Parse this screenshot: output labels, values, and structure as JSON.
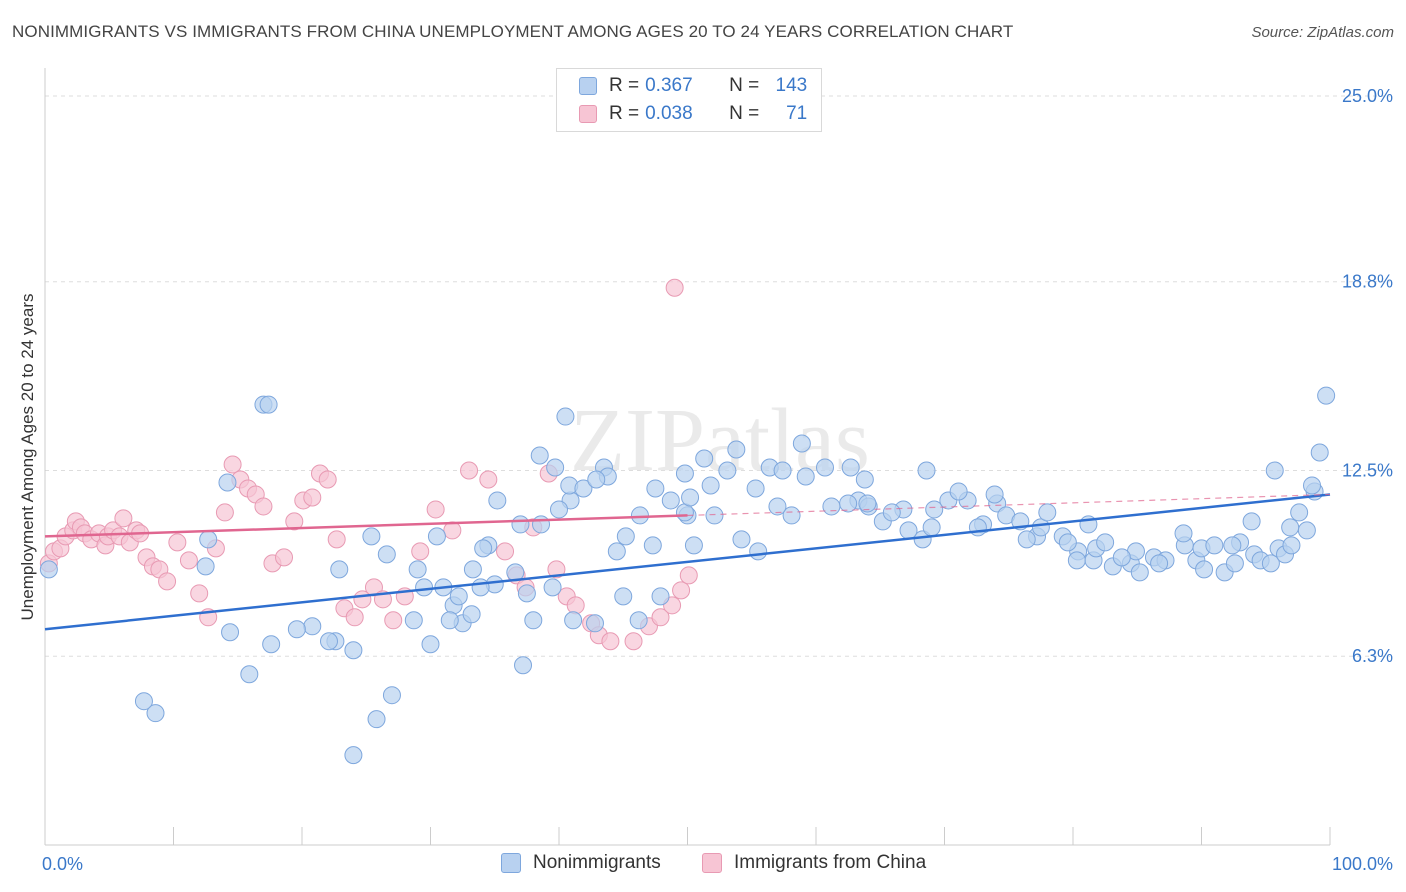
{
  "title": "NONIMMIGRANTS VS IMMIGRANTS FROM CHINA UNEMPLOYMENT AMONG AGES 20 TO 24 YEARS CORRELATION CHART",
  "source": "Source: ZipAtlas.com",
  "watermark": "ZIPatlas",
  "legend": {
    "nonimmigrants": {
      "r_label": "R =",
      "r_value": "0.367",
      "n_label": "N =",
      "n_value": "143"
    },
    "china": {
      "r_label": "R =",
      "r_value": "0.038",
      "n_label": "N =",
      "n_value": "71"
    }
  },
  "bottom_legend": {
    "nonimmigrants": "Nonimmigrants",
    "china": "Immigrants from China"
  },
  "colors": {
    "blue_fill": "#b8d1f0",
    "blue_stroke": "#7ea7dd",
    "blue_line": "#2f6fcf",
    "pink_fill": "#f7c5d4",
    "pink_stroke": "#e89ab3",
    "pink_line": "#e06690",
    "axis_label": "#3a78c9",
    "grid": "#dddddd"
  },
  "chart_data": {
    "type": "scatter",
    "title": "NONIMMIGRANTS VS IMMIGRANTS FROM CHINA UNEMPLOYMENT AMONG AGES 20 TO 24 YEARS CORRELATION CHART",
    "xlabel": "",
    "ylabel": "Unemployment Among Ages 20 to 24 years",
    "xlim": [
      0,
      100
    ],
    "ylim": [
      0,
      25.6
    ],
    "x_tick_labels": [
      "0.0%",
      "100.0%"
    ],
    "y_ticks": [
      6.3,
      12.5,
      18.8,
      25.0
    ],
    "y_tick_labels": [
      "6.3%",
      "12.5%",
      "18.8%",
      "25.0%"
    ],
    "grid": true,
    "legend_position": "top-center",
    "series": [
      {
        "name": "Nonimmigrants",
        "color": "#b8d1f0",
        "trend": {
          "x": [
            0,
            100
          ],
          "y": [
            7.2,
            11.7
          ],
          "style": "solid"
        },
        "points": [
          [
            0.3,
            9.2
          ],
          [
            17.0,
            14.7
          ],
          [
            17.4,
            14.7
          ],
          [
            14.2,
            12.1
          ],
          [
            22.6,
            6.8
          ],
          [
            24.0,
            6.5
          ],
          [
            25.4,
            10.3
          ],
          [
            26.6,
            9.7
          ],
          [
            29.5,
            8.6
          ],
          [
            31.0,
            8.6
          ],
          [
            37.2,
            6.0
          ],
          [
            37.5,
            8.4
          ],
          [
            38.0,
            7.5
          ],
          [
            43.5,
            12.6
          ],
          [
            40.9,
            11.5
          ],
          [
            40.5,
            14.3
          ],
          [
            43.8,
            12.3
          ],
          [
            30.5,
            10.3
          ],
          [
            31.8,
            8.0
          ],
          [
            29.0,
            9.2
          ],
          [
            32.5,
            7.4
          ],
          [
            33.2,
            7.7
          ],
          [
            34.5,
            10.0
          ],
          [
            35.0,
            8.7
          ],
          [
            37.0,
            10.7
          ],
          [
            38.5,
            13.0
          ],
          [
            40.8,
            12.0
          ],
          [
            41.9,
            11.9
          ],
          [
            42.9,
            12.2
          ],
          [
            36.6,
            9.1
          ],
          [
            38.6,
            10.7
          ],
          [
            39.5,
            8.6
          ],
          [
            44.5,
            9.8
          ],
          [
            45.2,
            10.3
          ],
          [
            46.3,
            11.0
          ],
          [
            47.5,
            11.9
          ],
          [
            47.3,
            10.0
          ],
          [
            48.7,
            11.5
          ],
          [
            49.8,
            12.4
          ],
          [
            50.0,
            11.0
          ],
          [
            49.8,
            11.1
          ],
          [
            50.2,
            11.6
          ],
          [
            51.3,
            12.9
          ],
          [
            51.8,
            12.0
          ],
          [
            53.1,
            12.5
          ],
          [
            53.8,
            13.2
          ],
          [
            55.3,
            11.9
          ],
          [
            56.4,
            12.6
          ],
          [
            58.1,
            11.0
          ],
          [
            57.4,
            12.5
          ],
          [
            59.2,
            12.3
          ],
          [
            60.7,
            12.6
          ],
          [
            62.7,
            12.6
          ],
          [
            63.3,
            11.5
          ],
          [
            62.5,
            11.4
          ],
          [
            64.1,
            11.3
          ],
          [
            64.0,
            11.4
          ],
          [
            65.2,
            10.8
          ],
          [
            66.8,
            11.2
          ],
          [
            68.3,
            10.2
          ],
          [
            69.2,
            11.2
          ],
          [
            69.0,
            10.6
          ],
          [
            70.3,
            11.5
          ],
          [
            71.8,
            11.5
          ],
          [
            73.0,
            10.7
          ],
          [
            72.6,
            10.6
          ],
          [
            74.1,
            11.4
          ],
          [
            74.8,
            11.0
          ],
          [
            75.9,
            10.8
          ],
          [
            77.2,
            10.3
          ],
          [
            77.5,
            10.6
          ],
          [
            78.0,
            11.1
          ],
          [
            79.2,
            10.3
          ],
          [
            80.4,
            9.8
          ],
          [
            80.3,
            9.5
          ],
          [
            81.6,
            9.5
          ],
          [
            81.8,
            9.9
          ],
          [
            82.5,
            10.1
          ],
          [
            83.1,
            9.3
          ],
          [
            84.5,
            9.4
          ],
          [
            84.9,
            9.8
          ],
          [
            85.2,
            9.1
          ],
          [
            86.3,
            9.6
          ],
          [
            87.2,
            9.5
          ],
          [
            88.7,
            10.0
          ],
          [
            89.6,
            9.5
          ],
          [
            90.2,
            9.2
          ],
          [
            90.0,
            9.9
          ],
          [
            91.0,
            10.0
          ],
          [
            91.8,
            9.1
          ],
          [
            92.6,
            9.4
          ],
          [
            93.0,
            10.1
          ],
          [
            94.1,
            9.7
          ],
          [
            94.6,
            9.5
          ],
          [
            95.4,
            9.4
          ],
          [
            96.0,
            9.9
          ],
          [
            96.5,
            9.7
          ],
          [
            97.0,
            10.0
          ],
          [
            97.6,
            11.1
          ],
          [
            98.2,
            10.5
          ],
          [
            98.8,
            11.8
          ],
          [
            99.2,
            13.1
          ],
          [
            99.7,
            15.0
          ],
          [
            98.6,
            12.0
          ],
          [
            96.9,
            10.6
          ],
          [
            95.7,
            12.5
          ],
          [
            93.9,
            10.8
          ],
          [
            92.4,
            10.0
          ],
          [
            88.6,
            10.4
          ],
          [
            86.7,
            9.4
          ],
          [
            83.8,
            9.6
          ],
          [
            81.2,
            10.7
          ],
          [
            79.6,
            10.1
          ],
          [
            76.4,
            10.2
          ],
          [
            73.9,
            11.7
          ],
          [
            71.1,
            11.8
          ],
          [
            68.6,
            12.5
          ],
          [
            67.2,
            10.5
          ],
          [
            65.9,
            11.1
          ],
          [
            63.8,
            12.2
          ],
          [
            61.2,
            11.3
          ],
          [
            58.9,
            13.4
          ],
          [
            57.0,
            11.3
          ],
          [
            55.5,
            9.8
          ],
          [
            54.2,
            10.2
          ],
          [
            52.1,
            11.0
          ],
          [
            50.5,
            10.0
          ],
          [
            47.9,
            8.3
          ],
          [
            46.2,
            7.5
          ],
          [
            45.0,
            8.3
          ],
          [
            42.8,
            7.4
          ],
          [
            41.1,
            7.5
          ],
          [
            40.0,
            11.2
          ],
          [
            39.7,
            12.6
          ],
          [
            35.2,
            11.5
          ],
          [
            34.1,
            9.9
          ],
          [
            33.9,
            8.6
          ],
          [
            33.3,
            9.2
          ],
          [
            32.2,
            8.3
          ],
          [
            31.5,
            7.5
          ],
          [
            30.0,
            6.7
          ],
          [
            28.7,
            7.5
          ],
          [
            27.0,
            5.0
          ],
          [
            25.8,
            4.2
          ],
          [
            24.0,
            3.0
          ],
          [
            22.9,
            9.2
          ],
          [
            22.1,
            6.8
          ],
          [
            20.8,
            7.3
          ],
          [
            19.6,
            7.2
          ],
          [
            17.6,
            6.7
          ],
          [
            15.9,
            5.7
          ],
          [
            14.4,
            7.1
          ],
          [
            12.7,
            10.2
          ],
          [
            12.5,
            9.3
          ],
          [
            8.6,
            4.4
          ],
          [
            7.7,
            4.8
          ]
        ]
      },
      {
        "name": "Immigrants from China",
        "color": "#f7c5d4",
        "trend": {
          "x": [
            0,
            100
          ],
          "y": [
            10.3,
            11.7
          ],
          "style": "solid-then-dashed",
          "solid_until": 50
        },
        "points": [
          [
            0.3,
            9.4
          ],
          [
            0.7,
            9.8
          ],
          [
            1.2,
            9.9
          ],
          [
            1.6,
            10.3
          ],
          [
            2.2,
            10.5
          ],
          [
            2.4,
            10.8
          ],
          [
            2.8,
            10.6
          ],
          [
            3.1,
            10.4
          ],
          [
            3.6,
            10.2
          ],
          [
            4.2,
            10.4
          ],
          [
            4.7,
            10.0
          ],
          [
            4.9,
            10.3
          ],
          [
            5.3,
            10.5
          ],
          [
            5.8,
            10.3
          ],
          [
            6.1,
            10.9
          ],
          [
            6.6,
            10.1
          ],
          [
            7.1,
            10.5
          ],
          [
            7.4,
            10.4
          ],
          [
            7.9,
            9.6
          ],
          [
            8.4,
            9.3
          ],
          [
            8.9,
            9.2
          ],
          [
            9.5,
            8.8
          ],
          [
            10.3,
            10.1
          ],
          [
            11.2,
            9.5
          ],
          [
            12.0,
            8.4
          ],
          [
            12.7,
            7.6
          ],
          [
            13.3,
            9.9
          ],
          [
            14.0,
            11.1
          ],
          [
            14.6,
            12.7
          ],
          [
            15.2,
            12.2
          ],
          [
            15.8,
            11.9
          ],
          [
            16.4,
            11.7
          ],
          [
            17.0,
            11.3
          ],
          [
            17.7,
            9.4
          ],
          [
            18.6,
            9.6
          ],
          [
            19.4,
            10.8
          ],
          [
            20.1,
            11.5
          ],
          [
            20.8,
            11.6
          ],
          [
            21.4,
            12.4
          ],
          [
            22.0,
            12.2
          ],
          [
            22.7,
            10.2
          ],
          [
            23.3,
            7.9
          ],
          [
            24.1,
            7.6
          ],
          [
            24.7,
            8.2
          ],
          [
            25.6,
            8.6
          ],
          [
            26.3,
            8.2
          ],
          [
            27.1,
            7.5
          ],
          [
            28.0,
            8.3
          ],
          [
            29.2,
            9.8
          ],
          [
            30.4,
            11.2
          ],
          [
            31.7,
            10.5
          ],
          [
            33.0,
            12.5
          ],
          [
            34.5,
            12.2
          ],
          [
            35.8,
            9.8
          ],
          [
            36.7,
            9.0
          ],
          [
            37.4,
            8.6
          ],
          [
            38.0,
            10.6
          ],
          [
            39.2,
            12.4
          ],
          [
            39.8,
            9.2
          ],
          [
            40.6,
            8.3
          ],
          [
            41.3,
            8.0
          ],
          [
            42.5,
            7.4
          ],
          [
            43.1,
            7.0
          ],
          [
            44.0,
            6.8
          ],
          [
            45.8,
            6.8
          ],
          [
            47.0,
            7.3
          ],
          [
            47.9,
            7.6
          ],
          [
            48.8,
            8.0
          ],
          [
            49.5,
            8.5
          ],
          [
            50.1,
            9.0
          ],
          [
            49.0,
            18.6
          ]
        ]
      }
    ]
  }
}
